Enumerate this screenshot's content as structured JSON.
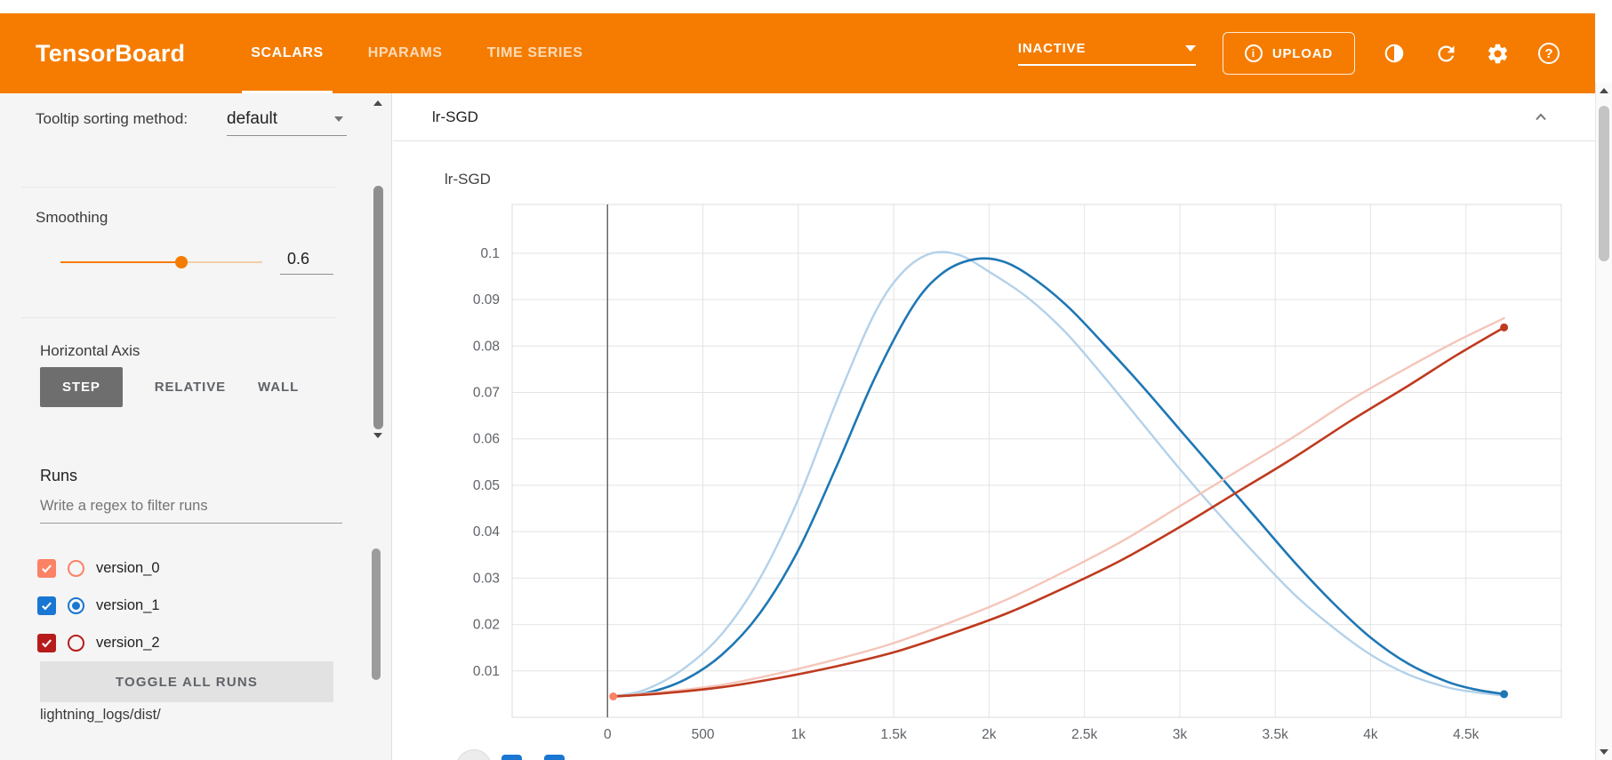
{
  "header": {
    "logo": "TensorBoard",
    "tabs": [
      {
        "label": "SCALARS",
        "active": true
      },
      {
        "label": "HPARAMS",
        "active": false
      },
      {
        "label": "TIME SERIES",
        "active": false
      }
    ],
    "status_dropdown": "INACTIVE",
    "upload_label": "UPLOAD",
    "icons": [
      "theme-toggle-icon",
      "refresh-icon",
      "settings-icon",
      "help-icon"
    ]
  },
  "sidebar": {
    "tooltip_sorting": {
      "label": "Tooltip sorting method:",
      "value": "default"
    },
    "smoothing": {
      "label": "Smoothing",
      "value": "0.6",
      "fraction": 0.6
    },
    "horizontal_axis": {
      "label": "Horizontal Axis",
      "options": [
        {
          "label": "STEP",
          "active": true
        },
        {
          "label": "RELATIVE",
          "active": false
        },
        {
          "label": "WALL",
          "active": false
        }
      ]
    },
    "runs": {
      "label": "Runs",
      "filter_placeholder": "Write a regex to filter runs",
      "items": [
        {
          "name": "version_0",
          "color": "#fb8265",
          "checked": true,
          "radio_selected": false
        },
        {
          "name": "version_1",
          "color": "#1976d2",
          "checked": true,
          "radio_selected": true
        },
        {
          "name": "version_2",
          "color": "#b71c1c",
          "checked": true,
          "radio_selected": false
        }
      ],
      "toggle_all_label": "TOGGLE ALL RUNS",
      "log_dir": "lightning_logs/dist/"
    }
  },
  "card": {
    "title": "lr-SGD"
  },
  "chart_data": {
    "type": "line",
    "title": "lr-SGD",
    "xlim": [
      -500,
      5000
    ],
    "ylim": [
      0,
      0.1105
    ],
    "grid": true,
    "x_ticks": [
      {
        "v": 0,
        "label": "0"
      },
      {
        "v": 500,
        "label": "500"
      },
      {
        "v": 1000,
        "label": "1k"
      },
      {
        "v": 1500,
        "label": "1.5k"
      },
      {
        "v": 2000,
        "label": "2k"
      },
      {
        "v": 2500,
        "label": "2.5k"
      },
      {
        "v": 3000,
        "label": "3k"
      },
      {
        "v": 3500,
        "label": "3.5k"
      },
      {
        "v": 4000,
        "label": "4k"
      },
      {
        "v": 4500,
        "label": "4.5k"
      }
    ],
    "y_ticks": [
      {
        "v": 0.01,
        "label": "0.01"
      },
      {
        "v": 0.02,
        "label": "0.02"
      },
      {
        "v": 0.03,
        "label": "0.03"
      },
      {
        "v": 0.04,
        "label": "0.04"
      },
      {
        "v": 0.05,
        "label": "0.05"
      },
      {
        "v": 0.06,
        "label": "0.06"
      },
      {
        "v": 0.07,
        "label": "0.07"
      },
      {
        "v": 0.08,
        "label": "0.08"
      },
      {
        "v": 0.09,
        "label": "0.09"
      },
      {
        "v": 0.1,
        "label": "0.1"
      }
    ],
    "series": [
      {
        "name": "version_1 (original)",
        "color": "#b3d1ea",
        "width": 2.4,
        "end_dot": false,
        "points": [
          [
            30,
            0.0045
          ],
          [
            200,
            0.006
          ],
          [
            400,
            0.0105
          ],
          [
            600,
            0.018
          ],
          [
            800,
            0.03
          ],
          [
            1000,
            0.047
          ],
          [
            1200,
            0.068
          ],
          [
            1400,
            0.087
          ],
          [
            1550,
            0.096
          ],
          [
            1700,
            0.1
          ],
          [
            1850,
            0.0995
          ],
          [
            2000,
            0.096
          ],
          [
            2200,
            0.0905
          ],
          [
            2400,
            0.083
          ],
          [
            2600,
            0.0735
          ],
          [
            2800,
            0.0635
          ],
          [
            3000,
            0.0535
          ],
          [
            3200,
            0.044
          ],
          [
            3400,
            0.035
          ],
          [
            3600,
            0.0265
          ],
          [
            3800,
            0.0195
          ],
          [
            4000,
            0.0135
          ],
          [
            4200,
            0.0092
          ],
          [
            4400,
            0.0065
          ],
          [
            4550,
            0.0054
          ],
          [
            4700,
            0.0047
          ]
        ]
      },
      {
        "name": "version_1 (smoothed)",
        "color": "#1f77b4",
        "width": 2.6,
        "end_dot": true,
        "points": [
          [
            30,
            0.0045
          ],
          [
            200,
            0.0052
          ],
          [
            400,
            0.008
          ],
          [
            600,
            0.0135
          ],
          [
            800,
            0.0225
          ],
          [
            1000,
            0.036
          ],
          [
            1200,
            0.054
          ],
          [
            1400,
            0.073
          ],
          [
            1600,
            0.0885
          ],
          [
            1750,
            0.0955
          ],
          [
            1900,
            0.0985
          ],
          [
            2050,
            0.0985
          ],
          [
            2200,
            0.0955
          ],
          [
            2400,
            0.089
          ],
          [
            2600,
            0.0805
          ],
          [
            2800,
            0.0715
          ],
          [
            3000,
            0.062
          ],
          [
            3200,
            0.0525
          ],
          [
            3400,
            0.043
          ],
          [
            3600,
            0.0335
          ],
          [
            3800,
            0.0248
          ],
          [
            4000,
            0.0172
          ],
          [
            4200,
            0.0115
          ],
          [
            4400,
            0.0077
          ],
          [
            4550,
            0.006
          ],
          [
            4700,
            0.005
          ]
        ]
      },
      {
        "name": "version_2 (original)",
        "color": "#f4c6ba",
        "width": 2.4,
        "end_dot": false,
        "points": [
          [
            30,
            0.0045
          ],
          [
            300,
            0.0055
          ],
          [
            600,
            0.007
          ],
          [
            900,
            0.0095
          ],
          [
            1200,
            0.0125
          ],
          [
            1500,
            0.016
          ],
          [
            1800,
            0.0205
          ],
          [
            2100,
            0.0255
          ],
          [
            2400,
            0.0315
          ],
          [
            2700,
            0.038
          ],
          [
            3000,
            0.0455
          ],
          [
            3300,
            0.053
          ],
          [
            3600,
            0.0605
          ],
          [
            3900,
            0.0685
          ],
          [
            4200,
            0.0755
          ],
          [
            4450,
            0.081
          ],
          [
            4700,
            0.086
          ]
        ]
      },
      {
        "name": "version_2 (smoothed)",
        "color": "#bf3a1e",
        "width": 2.6,
        "end_dot": true,
        "points": [
          [
            30,
            0.0045
          ],
          [
            300,
            0.0052
          ],
          [
            600,
            0.0065
          ],
          [
            900,
            0.0085
          ],
          [
            1200,
            0.011
          ],
          [
            1500,
            0.014
          ],
          [
            1800,
            0.018
          ],
          [
            2100,
            0.0225
          ],
          [
            2400,
            0.028
          ],
          [
            2700,
            0.034
          ],
          [
            3000,
            0.041
          ],
          [
            3300,
            0.0485
          ],
          [
            3600,
            0.056
          ],
          [
            3900,
            0.064
          ],
          [
            4200,
            0.0715
          ],
          [
            4450,
            0.078
          ],
          [
            4700,
            0.084
          ]
        ]
      },
      {
        "name": "version_0",
        "color": "#fb8265",
        "width": 2.6,
        "end_dot": true,
        "points": [
          [
            30,
            0.0045
          ]
        ]
      }
    ]
  }
}
